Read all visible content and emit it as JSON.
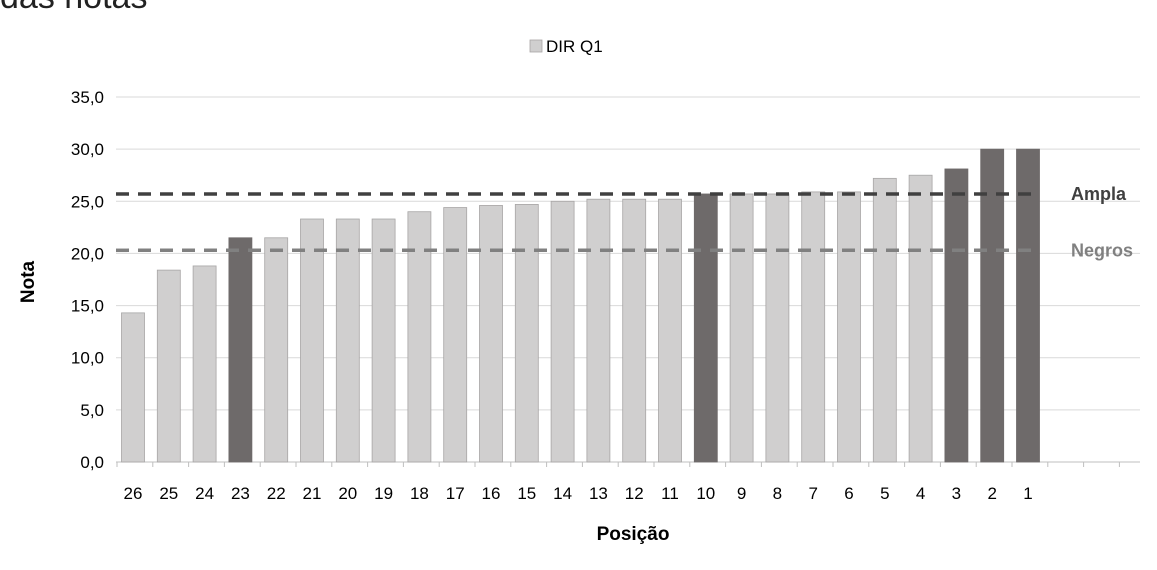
{
  "page": {
    "title_fragment": "das notas"
  },
  "chart_data": {
    "type": "bar",
    "title": "",
    "xlabel": "Posição",
    "ylabel": "Nota",
    "ylim": [
      0,
      35
    ],
    "yticks": [
      0,
      5,
      10,
      15,
      20,
      25,
      30,
      35
    ],
    "ytick_labels": [
      "0,0",
      "5,0",
      "10,0",
      "15,0",
      "20,0",
      "25,0",
      "30,0",
      "35,0"
    ],
    "grid": true,
    "legend_position": "top-center",
    "categories": [
      "26",
      "25",
      "24",
      "23",
      "22",
      "21",
      "20",
      "19",
      "18",
      "17",
      "16",
      "15",
      "14",
      "13",
      "12",
      "11",
      "10",
      "9",
      "8",
      "7",
      "6",
      "5",
      "4",
      "3",
      "2",
      "1"
    ],
    "series": [
      {
        "name": "DIR Q1",
        "values": [
          14.3,
          18.4,
          18.8,
          21.5,
          21.5,
          23.3,
          23.3,
          23.3,
          24.0,
          24.4,
          24.6,
          24.7,
          25.0,
          25.2,
          25.2,
          25.2,
          25.7,
          25.7,
          25.7,
          25.9,
          25.9,
          27.2,
          27.5,
          28.1,
          30.0,
          30.0
        ],
        "highlighted": [
          false,
          false,
          false,
          true,
          false,
          false,
          false,
          false,
          false,
          false,
          false,
          false,
          false,
          false,
          false,
          false,
          true,
          false,
          false,
          false,
          false,
          false,
          false,
          true,
          true,
          true
        ]
      }
    ],
    "reference_lines": [
      {
        "label": "Ampla",
        "value": 25.7,
        "color": "#404040"
      },
      {
        "label": "Negros",
        "value": 20.3,
        "color": "#808080"
      }
    ],
    "colors": {
      "bar": "#d0cfcf",
      "bar_highlight": "#6e6a6a",
      "bar_stroke": "#a7a5a5",
      "grid": "#d9d9d9"
    }
  }
}
